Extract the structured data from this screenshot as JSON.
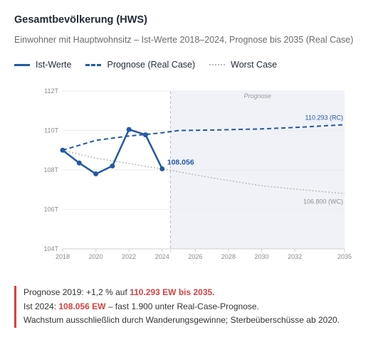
{
  "header": {
    "title": "Gesamtbevölkerung (HWS)",
    "subtitle": "Einwohner mit Hauptwohnsitz – Ist-Werte 2018–2024, Prognose bis 2035 (Real Case)"
  },
  "legend": {
    "ist": "Ist-Werte",
    "rc": "Prognose (Real Case)",
    "wc": "Worst Case"
  },
  "colors": {
    "ist": "#2458a6",
    "rc": "#2458a6",
    "wc": "#b8b8b8",
    "prognose_band": "#f0f2f8",
    "highlight": "#d94040"
  },
  "chart_data": {
    "type": "line",
    "xlim": [
      2018,
      2035
    ],
    "ylim": [
      104000,
      112000
    ],
    "x_ticks": [
      2018,
      2020,
      2022,
      2024,
      2026,
      2028,
      2030,
      2032,
      2035
    ],
    "x_tick_labels": [
      "2018",
      "2020",
      "2022",
      "2024",
      "2026",
      "2028",
      "2030",
      "2032",
      "2035"
    ],
    "y_ticks": [
      104000,
      106000,
      108000,
      110000,
      112000
    ],
    "y_tick_labels": [
      "104T",
      "106T",
      "108T",
      "110T",
      "112T"
    ],
    "grid": true,
    "legend_position": "top-left",
    "prognose_band": {
      "from": 2024.5,
      "to": 2035,
      "label": "Prognose"
    },
    "series": [
      {
        "name": "Ist-Werte",
        "style": "solid",
        "markers": true,
        "points": [
          [
            2018,
            109000
          ],
          [
            2019,
            108350
          ],
          [
            2020,
            107800
          ],
          [
            2021,
            108200
          ],
          [
            2022,
            110050
          ],
          [
            2023,
            109780
          ],
          [
            2024,
            108056
          ]
        ],
        "end_label": "108.056"
      },
      {
        "name": "Prognose (Real Case)",
        "style": "dashed",
        "points": [
          [
            2018,
            109000
          ],
          [
            2019,
            109250
          ],
          [
            2020,
            109500
          ],
          [
            2022,
            109720
          ],
          [
            2024,
            109880
          ],
          [
            2025,
            110000
          ],
          [
            2027,
            110020
          ],
          [
            2030,
            110080
          ],
          [
            2032,
            110150
          ],
          [
            2035,
            110293
          ]
        ],
        "end_label": "110.293 (RC)"
      },
      {
        "name": "Worst Case",
        "style": "dotted",
        "points": [
          [
            2018,
            109000
          ],
          [
            2020,
            108600
          ],
          [
            2024,
            108050
          ],
          [
            2027,
            107600
          ],
          [
            2030,
            107200
          ],
          [
            2033,
            106950
          ],
          [
            2035,
            106800
          ]
        ],
        "end_label": "106.800 (WC)"
      }
    ]
  },
  "callout": {
    "l1_a": "Prognose 2019: +1,2 % auf ",
    "l1_b": "110.293 EW bis 2035.",
    "l2_a": "Ist 2024: ",
    "l2_b": "108.056 EW",
    "l2_c": " – fast 1.900 unter Real-Case-Prognose.",
    "l3": "Wachstum ausschließlich durch Wanderungsgewinne; Sterbeüberschüsse ab 2020."
  }
}
